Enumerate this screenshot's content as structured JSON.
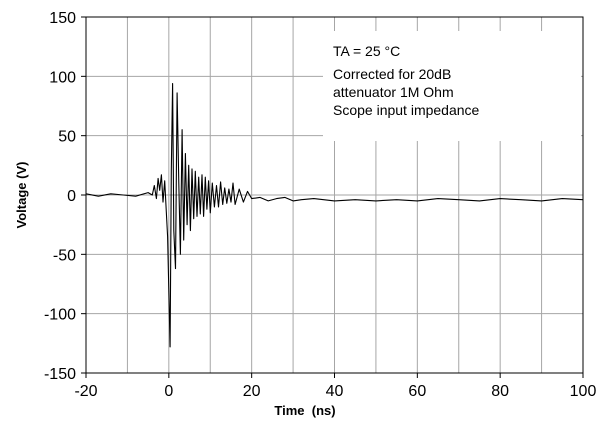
{
  "chart_data": {
    "type": "line",
    "xlabel": "Time  (ns)",
    "ylabel": "Voltage (V)",
    "xlim": [
      -20,
      100
    ],
    "ylim": [
      -150,
      150
    ],
    "xticks": [
      -20,
      0,
      20,
      40,
      60,
      80,
      100
    ],
    "yticks": [
      -150,
      -100,
      -50,
      0,
      50,
      100,
      150
    ],
    "x_tick_labels": [
      "-20",
      "0",
      "20",
      "40",
      "60",
      "80",
      "100"
    ],
    "y_tick_labels": [
      "-150",
      "-100",
      "-50",
      "0",
      "50",
      "100",
      "150"
    ],
    "x_minor_gridlines": [
      -10,
      10,
      30,
      50,
      70,
      90
    ],
    "grid": true,
    "annotation": {
      "lines": [
        "TA = 25 °C",
        "Corrected for 20dB",
        "attenuator 1M Ohm",
        "Scope input impedance"
      ]
    },
    "colors": {
      "series": "#000000",
      "grid": "#a6a6a6"
    },
    "series": [
      {
        "x": [
          -20,
          -17,
          -14,
          -11,
          -8,
          -5,
          -4,
          -3.5,
          -3,
          -2.6,
          -2.2,
          -1.8,
          -1.4,
          -1,
          -0.6,
          -0.3,
          0,
          0.3,
          0.6,
          0.9,
          1.2,
          1.6,
          2,
          2.4,
          2.8,
          3.2,
          3.6,
          4,
          4.4,
          4.8,
          5.2,
          5.6,
          6,
          6.4,
          6.8,
          7.2,
          7.6,
          8,
          8.4,
          8.8,
          9.2,
          9.6,
          10,
          10.5,
          11,
          11.5,
          12,
          12.5,
          13,
          13.5,
          14,
          14.5,
          15,
          15.5,
          16,
          17,
          18,
          19,
          20,
          22,
          24,
          26,
          28,
          30,
          32,
          35,
          40,
          45,
          50,
          55,
          60,
          65,
          70,
          75,
          80,
          85,
          90,
          95,
          100
        ],
        "y": [
          1,
          -1,
          1,
          0,
          -1,
          2,
          0,
          8,
          -3,
          14,
          4,
          17,
          -6,
          12,
          -14,
          -35,
          -80,
          -128,
          20,
          94,
          -30,
          -62,
          86,
          10,
          -50,
          55,
          -38,
          35,
          -25,
          25,
          -30,
          22,
          -20,
          20,
          -18,
          15,
          -16,
          17,
          -18,
          15,
          -12,
          12,
          -15,
          10,
          -10,
          8,
          -10,
          11,
          -8,
          6,
          -7,
          5,
          -6,
          10,
          -8,
          5,
          -6,
          3,
          -3,
          -2,
          -5,
          -3,
          -2,
          -5,
          -4,
          -3,
          -5,
          -4,
          -5,
          -4,
          -5,
          -3,
          -4,
          -5,
          -3,
          -4,
          -5,
          -3,
          -4
        ]
      }
    ]
  }
}
